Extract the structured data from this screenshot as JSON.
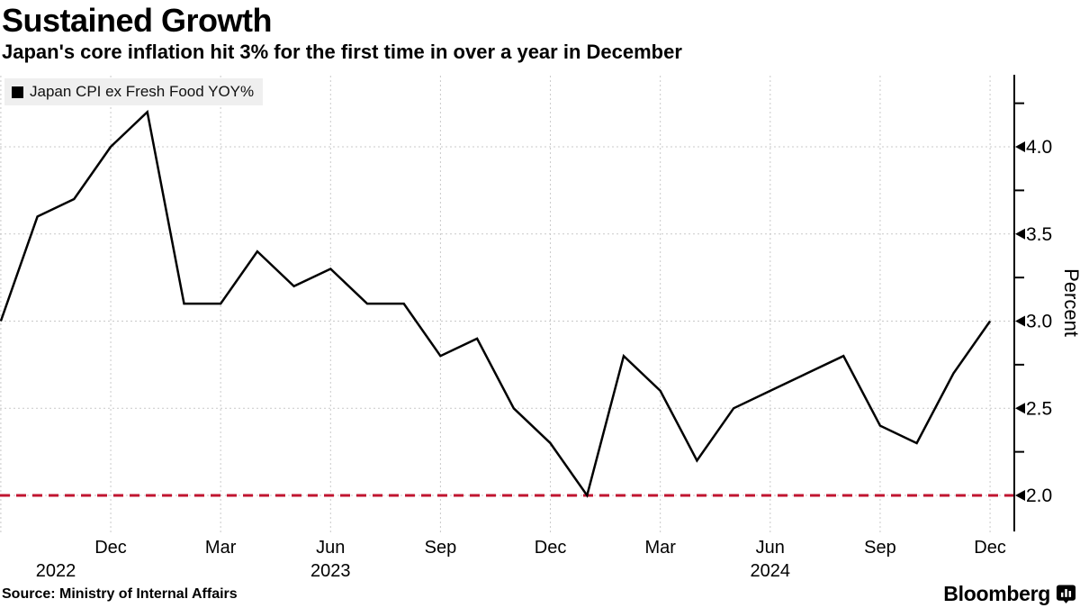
{
  "header": {
    "title": "Sustained Growth",
    "subtitle": "Japan's core inflation hit 3% for the first time in over a year in December"
  },
  "legend": {
    "label": "Japan CPI ex Fresh Food YOY%"
  },
  "footer": {
    "source": "Source: Ministry of Internal Affairs",
    "brand": "Bloomberg"
  },
  "colors": {
    "line": "#000000",
    "reference_red": "#c01530",
    "grid": "#c9c9c9",
    "legend_bg": "#efefef",
    "axis": "#000000"
  },
  "chart_data": {
    "type": "line",
    "title": "Sustained Growth",
    "subtitle": "Japan's core inflation hit 3% for the first time in over a year in December",
    "ylabel": "Percent",
    "xlabel": "",
    "ylim": [
      1.8,
      4.4
    ],
    "yticks": [
      2.0,
      2.5,
      3.0,
      3.5,
      4.0
    ],
    "yticks_minor": [
      2.25,
      2.75,
      3.25,
      3.75,
      4.25
    ],
    "grid": true,
    "legend_position": "top-left",
    "reference_line": {
      "value": 2.0,
      "color": "#c01530",
      "style": "dashed"
    },
    "months": [
      "Sep 2022",
      "Oct 2022",
      "Nov 2022",
      "Dec 2022",
      "Jan 2023",
      "Feb 2023",
      "Mar 2023",
      "Apr 2023",
      "May 2023",
      "Jun 2023",
      "Jul 2023",
      "Aug 2023",
      "Sep 2023",
      "Oct 2023",
      "Nov 2023",
      "Dec 2023",
      "Jan 2024",
      "Feb 2024",
      "Mar 2024",
      "Apr 2024",
      "May 2024",
      "Jun 2024",
      "Jul 2024",
      "Aug 2024",
      "Sep 2024",
      "Oct 2024",
      "Nov 2024",
      "Dec 2024"
    ],
    "series": [
      {
        "name": "Japan CPI ex Fresh Food YOY%",
        "color": "#000000",
        "values": [
          3.0,
          3.6,
          3.7,
          4.0,
          4.2,
          3.1,
          3.1,
          3.4,
          3.2,
          3.3,
          3.1,
          3.1,
          2.8,
          2.9,
          2.5,
          2.3,
          2.0,
          2.8,
          2.6,
          2.2,
          2.5,
          2.6,
          2.7,
          2.8,
          2.4,
          2.3,
          2.7,
          3.0
        ]
      }
    ],
    "xticks": [
      {
        "label": "Dec",
        "index": 3
      },
      {
        "label": "Mar",
        "index": 6
      },
      {
        "label": "Jun",
        "index": 9
      },
      {
        "label": "Sep",
        "index": 12
      },
      {
        "label": "Dec",
        "index": 15
      },
      {
        "label": "Mar",
        "index": 18
      },
      {
        "label": "Jun",
        "index": 21
      },
      {
        "label": "Sep",
        "index": 24
      },
      {
        "label": "Dec",
        "index": 27
      }
    ],
    "year_labels": [
      {
        "label": "2022",
        "index": 1.5
      },
      {
        "label": "2023",
        "index": 9
      },
      {
        "label": "2024",
        "index": 21
      }
    ]
  }
}
